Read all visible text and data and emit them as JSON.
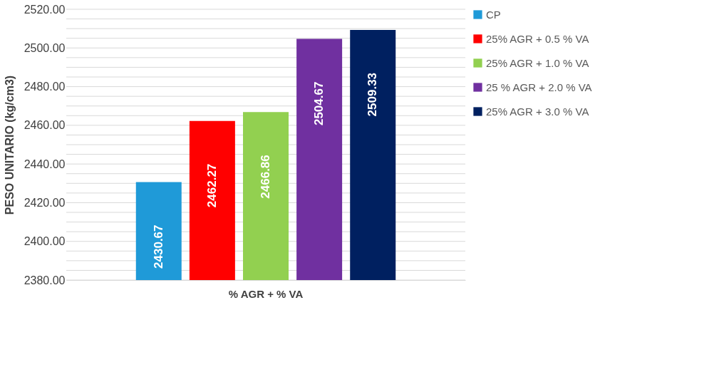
{
  "chart_data": {
    "type": "bar",
    "categories": [
      "% AGR + % VA"
    ],
    "ylabel": "PESO UNITARIO (kg/cm3)",
    "series": [
      {
        "name": "CP",
        "color": "#1f9ad8",
        "values": [
          2430.67
        ]
      },
      {
        "name": "25% AGR + 0.5 % VA",
        "color": "#ff0000",
        "values": [
          2462.27
        ]
      },
      {
        "name": "25% AGR + 1.0 % VA",
        "color": "#92d050",
        "values": [
          2466.86
        ]
      },
      {
        "name": "25 % AGR + 2.0 % VA",
        "color": "#7030a0",
        "values": [
          2504.67
        ]
      },
      {
        "name": "25% AGR + 3.0 % VA",
        "color": "#002060",
        "values": [
          2509.33
        ]
      }
    ],
    "ylim": [
      2380,
      2520
    ],
    "yticks": [
      {
        "value": 2380,
        "label": "2380.00"
      },
      {
        "value": 2385,
        "label": null
      },
      {
        "value": 2390,
        "label": null
      },
      {
        "value": 2395,
        "label": null
      },
      {
        "value": 2400,
        "label": "2400.00"
      },
      {
        "value": 2405,
        "label": null
      },
      {
        "value": 2410,
        "label": null
      },
      {
        "value": 2415,
        "label": null
      },
      {
        "value": 2420,
        "label": "2420.00"
      },
      {
        "value": 2425,
        "label": null
      },
      {
        "value": 2430,
        "label": null
      },
      {
        "value": 2435,
        "label": null
      },
      {
        "value": 2440,
        "label": "2440.00"
      },
      {
        "value": 2445,
        "label": null
      },
      {
        "value": 2450,
        "label": null
      },
      {
        "value": 2455,
        "label": null
      },
      {
        "value": 2460,
        "label": "2460.00"
      },
      {
        "value": 2465,
        "label": null
      },
      {
        "value": 2470,
        "label": null
      },
      {
        "value": 2475,
        "label": null
      },
      {
        "value": 2480,
        "label": "2480.00"
      },
      {
        "value": 2485,
        "label": null
      },
      {
        "value": 2490,
        "label": null
      },
      {
        "value": 2495,
        "label": null
      },
      {
        "value": 2500,
        "label": "2500.00"
      },
      {
        "value": 2505,
        "label": null
      },
      {
        "value": 2510,
        "label": null
      },
      {
        "value": 2515,
        "label": null
      },
      {
        "value": 2520,
        "label": "2520.00"
      }
    ],
    "grid": true,
    "legend": "right",
    "data_labels": true
  }
}
